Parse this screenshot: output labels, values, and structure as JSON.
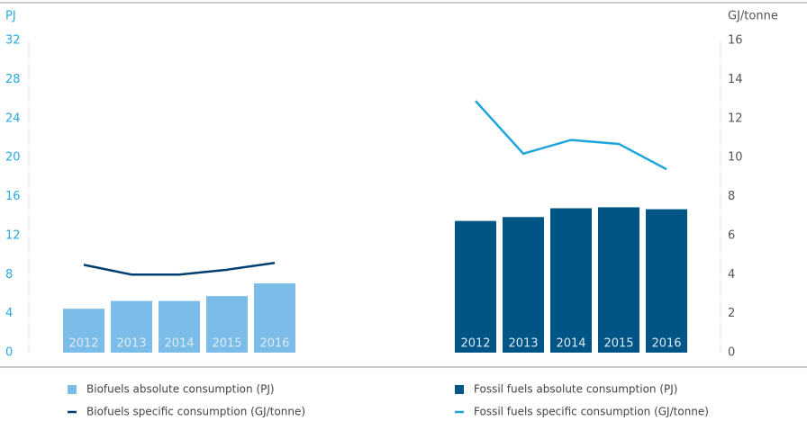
{
  "chart_data": {
    "type": "bar",
    "ylabel": "PJ",
    "y2label": "GJ/tonne",
    "categories": [
      "2012",
      "2013",
      "2014",
      "2015",
      "2016"
    ],
    "ylim": [
      0,
      32
    ],
    "yticks": [
      0,
      4,
      8,
      12,
      16,
      20,
      24,
      28,
      32
    ],
    "y2lim": [
      0,
      16
    ],
    "y2ticks": [
      0,
      2,
      4,
      6,
      8,
      10,
      12,
      14,
      16
    ],
    "series": [
      {
        "name": "Biofuels absolute consumption (PJ)",
        "type": "bar",
        "color": "#7bbde8",
        "values": [
          4.5,
          5.3,
          5.3,
          5.8,
          7.1
        ]
      },
      {
        "name": "Biofuels specific consumption (GJ/tonne)",
        "type": "line",
        "axis": "y2",
        "color": "#003f72",
        "values": [
          4.5,
          4.0,
          4.0,
          4.25,
          4.6
        ]
      },
      {
        "name": "Fossil fuels absolute consumption (PJ)",
        "type": "bar",
        "color": "#005587",
        "values": [
          13.5,
          13.9,
          14.8,
          14.9,
          14.7
        ]
      },
      {
        "name": "Fossil fuels specific consumption (GJ/tonne)",
        "type": "line",
        "axis": "y2",
        "color": "#1ea5dc",
        "values": [
          12.9,
          10.2,
          10.9,
          10.7,
          9.4
        ]
      }
    ]
  }
}
